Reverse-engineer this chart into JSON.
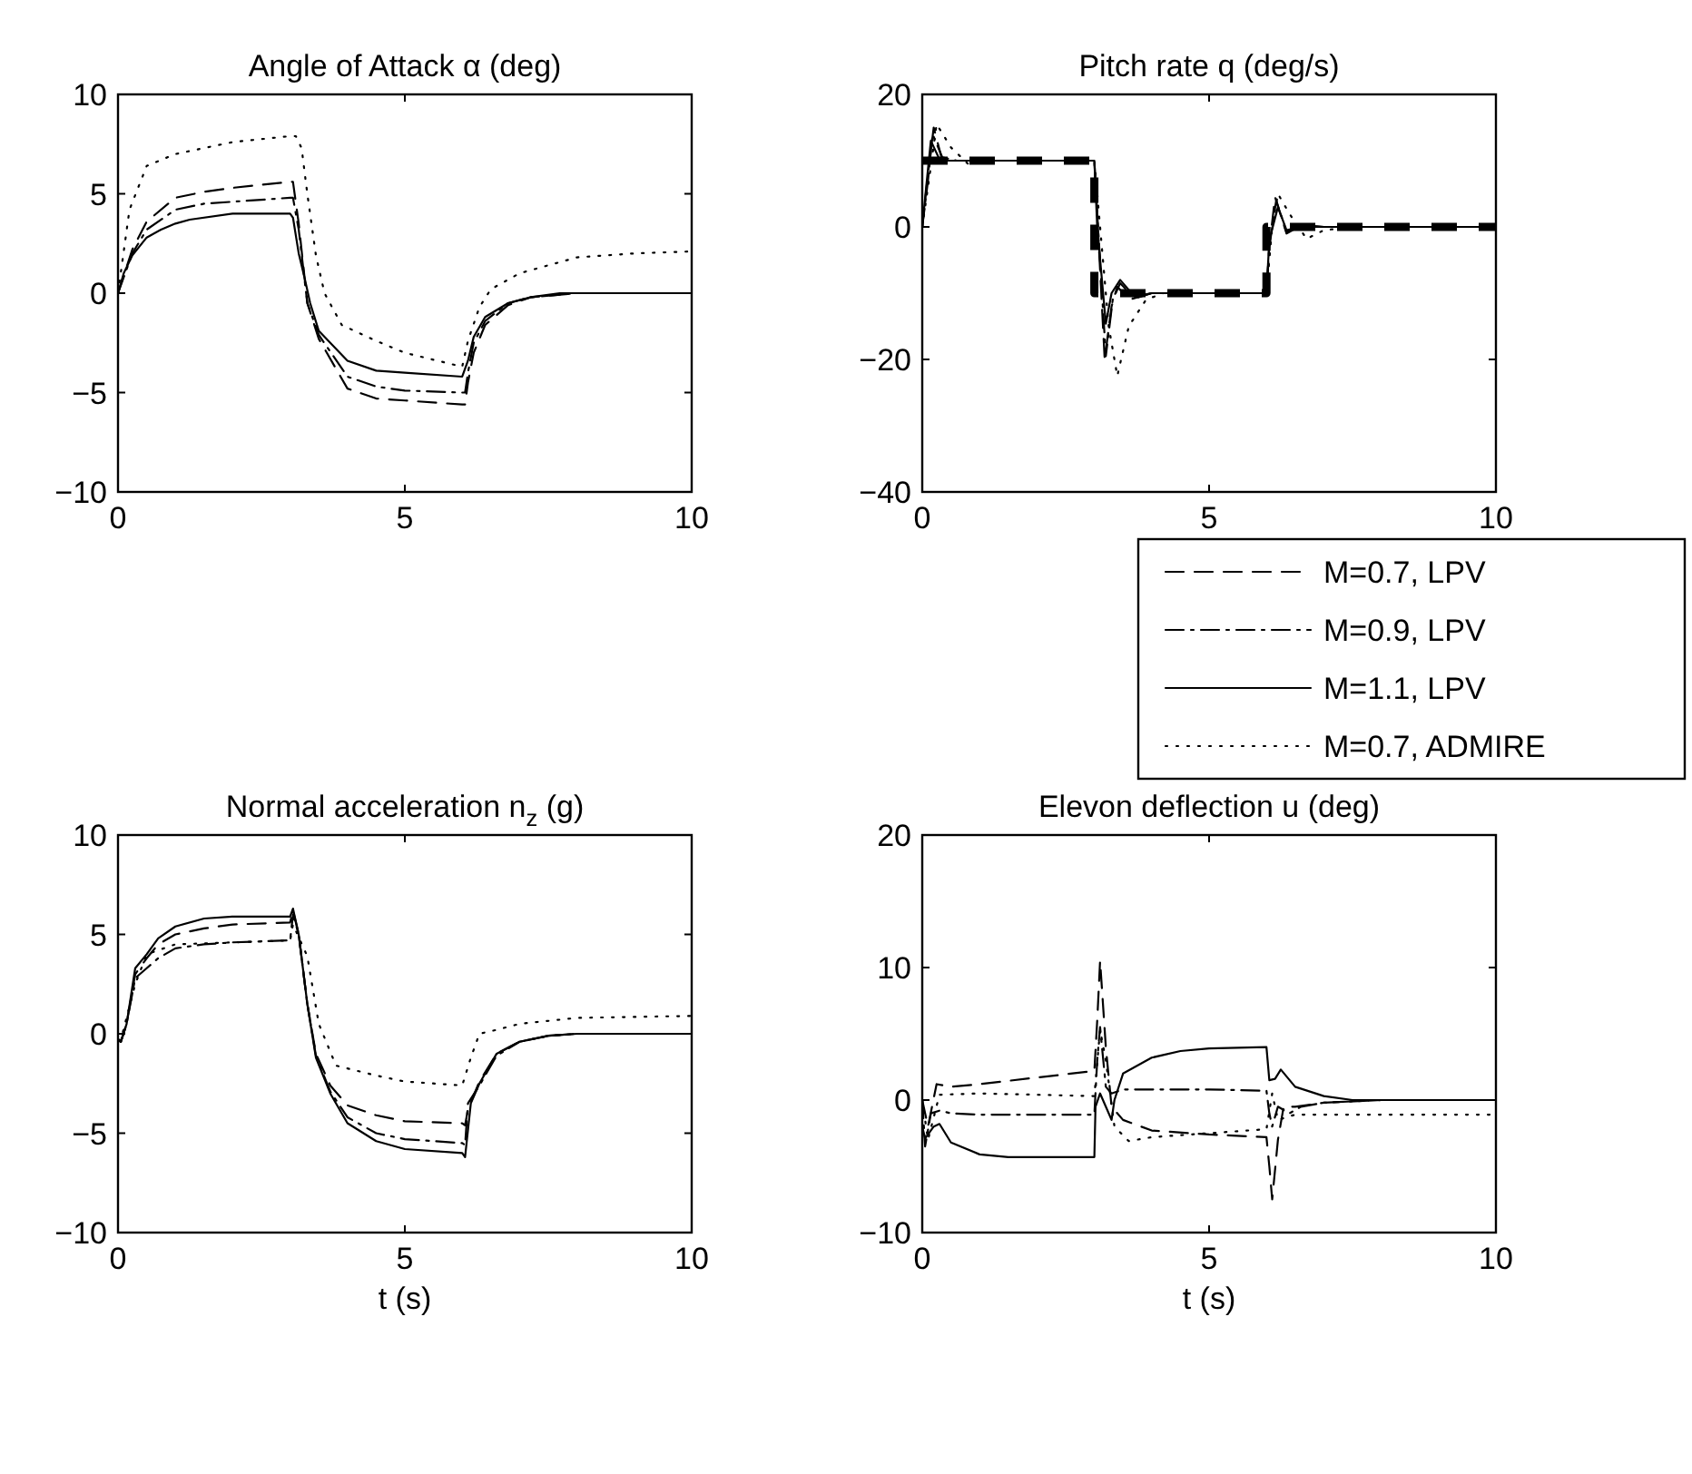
{
  "chart_data": [
    {
      "type": "line",
      "title": "Angle of Attack α (deg)",
      "xlim": [
        0,
        10
      ],
      "xticks": [
        0,
        5,
        10
      ],
      "ylim": [
        -10,
        10
      ],
      "yticks": [
        -10,
        -5,
        0,
        5,
        10
      ],
      "grid": false,
      "legend": false,
      "series": [
        {
          "color": "#000000",
          "line_style": "dashed",
          "x": [
            0,
            0.25,
            0.5,
            1,
            1.5,
            2,
            3,
            3.05,
            3.15,
            3.3,
            3.5,
            4,
            4.5,
            5,
            6,
            6.05,
            6.1,
            6.2,
            6.4,
            6.8,
            7.2,
            8,
            10
          ],
          "values": [
            0,
            2.2,
            3.6,
            4.8,
            5.1,
            5.3,
            5.6,
            5.6,
            3.5,
            -0.5,
            -2.3,
            -4.8,
            -5.3,
            -5.4,
            -5.6,
            -5.6,
            -4.5,
            -3.0,
            -1.6,
            -0.6,
            -0.2,
            0,
            0
          ]
        },
        {
          "color": "#000000",
          "line_style": "dashdot",
          "x": [
            0,
            0.25,
            0.5,
            1,
            1.5,
            2,
            3,
            3.05,
            3.15,
            3.3,
            3.5,
            4,
            4.5,
            5,
            6,
            6.05,
            6.1,
            6.2,
            6.4,
            6.8,
            7.2,
            8,
            10
          ],
          "values": [
            0,
            2.0,
            3.2,
            4.2,
            4.5,
            4.6,
            4.8,
            4.8,
            3.2,
            -0.5,
            -2.1,
            -4.2,
            -4.7,
            -4.9,
            -5.0,
            -5.0,
            -4.0,
            -2.5,
            -1.4,
            -0.5,
            -0.2,
            0,
            0
          ]
        },
        {
          "color": "#000000",
          "line_style": "solid",
          "x": [
            0,
            0.1,
            0.25,
            0.5,
            0.75,
            1,
            1.25,
            2,
            3,
            3.05,
            3.15,
            3.25,
            3.35,
            3.5,
            4,
            4.5,
            5,
            6,
            6.1,
            6.2,
            6.4,
            6.8,
            7.2,
            7.7,
            8.5,
            10
          ],
          "values": [
            0,
            1.0,
            1.9,
            2.8,
            3.2,
            3.5,
            3.7,
            4.0,
            4.0,
            3.8,
            2.0,
            0.8,
            -0.5,
            -1.9,
            -3.4,
            -3.9,
            -4.0,
            -4.2,
            -3.4,
            -2.2,
            -1.2,
            -0.5,
            -0.2,
            0,
            0,
            0
          ]
        },
        {
          "color": "#000000",
          "line_style": "dotted",
          "x": [
            0,
            0.2,
            0.5,
            1,
            1.5,
            2,
            3,
            3.1,
            3.2,
            3.3,
            3.45,
            3.6,
            3.9,
            4.5,
            5,
            6,
            6.1,
            6.3,
            6.5,
            7,
            7.5,
            8,
            9,
            10
          ],
          "values": [
            0,
            4.2,
            6.4,
            7.0,
            7.3,
            7.6,
            7.9,
            7.9,
            7.3,
            5.0,
            1.9,
            0,
            -1.6,
            -2.4,
            -3.0,
            -3.7,
            -2.4,
            -0.7,
            0.2,
            1.0,
            1.4,
            1.8,
            2.0,
            2.1
          ]
        }
      ]
    },
    {
      "type": "line",
      "title": "Pitch rate q (deg/s)",
      "xlim": [
        0,
        10
      ],
      "xticks": [
        0,
        5,
        10
      ],
      "ylim": [
        -40,
        20
      ],
      "yticks": [
        -40,
        -20,
        0,
        20
      ],
      "grid": false,
      "legend": "bottom right",
      "series": [
        {
          "type": "step",
          "color": "#000000",
          "line_style": "dashed",
          "x": [
            0,
            3,
            6,
            10
          ],
          "values": [
            10,
            -10,
            0,
            0
          ]
        },
        {
          "name": "M=0.7, LPV",
          "color": "#000000",
          "line_style": "dashed",
          "x": [
            0,
            0.1,
            0.2,
            0.35,
            0.6,
            3,
            3.05,
            3.18,
            3.3,
            3.4,
            3.6,
            4,
            6,
            6.05,
            6.15,
            6.35,
            6.6,
            7,
            10
          ],
          "values": [
            0,
            8,
            15,
            10,
            10,
            10,
            2,
            -20,
            -12,
            -9,
            -11,
            -10,
            -10,
            -3,
            4.5,
            -1,
            0.2,
            0,
            0
          ]
        },
        {
          "name": "M=0.9, LPV",
          "color": "#000000",
          "line_style": "dashdot",
          "x": [
            0,
            0.1,
            0.18,
            0.35,
            0.6,
            3,
            3.05,
            3.2,
            3.32,
            3.45,
            3.7,
            4,
            6,
            6.05,
            6.17,
            6.35,
            6.6,
            7,
            10
          ],
          "values": [
            0,
            7,
            14,
            10.5,
            10,
            10,
            2,
            -19.5,
            -11,
            -8.5,
            -10.8,
            -10,
            -10,
            -3,
            4,
            -0.8,
            0.3,
            0,
            0
          ]
        },
        {
          "name": "M=1.1, LPV",
          "color": "#000000",
          "line_style": "solid",
          "x": [
            0,
            0.08,
            0.15,
            0.3,
            0.4,
            3,
            3.05,
            3.2,
            3.3,
            3.45,
            3.7,
            4,
            6,
            6.05,
            6.2,
            6.35,
            6.6,
            7,
            10
          ],
          "values": [
            0,
            7,
            13,
            10.2,
            10,
            10,
            0,
            -14.6,
            -10,
            -8,
            -10.5,
            -10,
            -10,
            -2,
            3,
            -0.5,
            0,
            0,
            0
          ]
        },
        {
          "name": "M=0.7, ADMIRE",
          "color": "#000000",
          "line_style": "dotted",
          "x": [
            0,
            0.1,
            0.25,
            0.5,
            0.8,
            1,
            3,
            3.1,
            3.25,
            3.4,
            3.6,
            3.9,
            4.2,
            6,
            6.1,
            6.2,
            6.4,
            6.7,
            7,
            7.5,
            10
          ],
          "values": [
            0,
            6,
            15.5,
            12,
            9.5,
            10,
            10,
            0,
            -15,
            -22.5,
            -15,
            -11,
            -10,
            -10,
            0,
            5,
            2,
            -1.8,
            -0.5,
            0,
            0
          ]
        }
      ]
    },
    {
      "type": "line",
      "title": "Normal acceleration n$_{z}$ (g)",
      "xlabel": "t (s)",
      "xlim": [
        0,
        10
      ],
      "xticks": [
        0,
        5,
        10
      ],
      "ylim": [
        -10,
        10
      ],
      "yticks": [
        -10,
        -5,
        0,
        5,
        10
      ],
      "grid": false,
      "legend": false,
      "series": [
        {
          "color": "#000000",
          "line_style": "dashed",
          "x": [
            0,
            0.05,
            0.15,
            0.3,
            0.5,
            0.7,
            1,
            1.5,
            2,
            3,
            3.05,
            3.15,
            3.3,
            3.45,
            3.7,
            4,
            4.5,
            5,
            6,
            6.05,
            6.1,
            6.3,
            6.6,
            7,
            7.5,
            8,
            10
          ],
          "values": [
            -0.3,
            -0.4,
            0.5,
            3.0,
            3.8,
            4.5,
            5.0,
            5.3,
            5.5,
            5.6,
            6.2,
            5.0,
            1.5,
            -1.0,
            -2.6,
            -3.6,
            -4.1,
            -4.4,
            -4.5,
            -4.6,
            -3.8,
            -2.4,
            -1.0,
            -0.4,
            -0.1,
            0,
            0
          ]
        },
        {
          "color": "#000000",
          "line_style": "dashdot",
          "x": [
            0,
            0.05,
            0.15,
            0.3,
            0.5,
            0.7,
            1,
            1.5,
            2,
            3,
            3.05,
            3.15,
            3.3,
            3.45,
            3.7,
            4,
            4.5,
            5,
            6,
            6.05,
            6.1,
            6.3,
            6.6,
            7,
            7.5,
            8,
            10
          ],
          "values": [
            -0.3,
            -0.4,
            0.5,
            2.8,
            3.3,
            3.8,
            4.3,
            4.5,
            4.6,
            4.7,
            6.0,
            5.0,
            1.5,
            -1.1,
            -2.9,
            -4.2,
            -5.0,
            -5.3,
            -5.5,
            -5.6,
            -3.5,
            -2.6,
            -1.1,
            -0.4,
            -0.1,
            0,
            0
          ]
        },
        {
          "color": "#000000",
          "line_style": "solid",
          "x": [
            0,
            0.05,
            0.15,
            0.3,
            0.5,
            0.7,
            1,
            1.5,
            2,
            3,
            3.05,
            3.15,
            3.3,
            3.45,
            3.7,
            4,
            4.5,
            5,
            6,
            6.05,
            6.15,
            6.3,
            6.6,
            7,
            7.5,
            8,
            10
          ],
          "values": [
            -0.3,
            -0.4,
            0.5,
            3.3,
            4.0,
            4.8,
            5.4,
            5.8,
            5.9,
            5.9,
            6.3,
            5.0,
            1.5,
            -1.2,
            -3.0,
            -4.5,
            -5.4,
            -5.8,
            -6.0,
            -6.2,
            -3.5,
            -2.5,
            -1.0,
            -0.4,
            -0.1,
            0,
            0
          ]
        },
        {
          "color": "#000000",
          "line_style": "dotted",
          "x": [
            0,
            0.05,
            0.3,
            0.5,
            1,
            2,
            3,
            3.05,
            3.3,
            3.5,
            3.8,
            4.5,
            5,
            6,
            6.15,
            6.3,
            6.6,
            7,
            8,
            10
          ],
          "values": [
            -0.3,
            -0.3,
            2.5,
            4.0,
            4.5,
            4.6,
            4.7,
            5.5,
            3.9,
            0.5,
            -1.6,
            -2.1,
            -2.4,
            -2.6,
            -1.2,
            0,
            0.2,
            0.5,
            0.8,
            0.9
          ]
        }
      ]
    },
    {
      "type": "line",
      "title": "Elevon deflection u (deg)",
      "xlabel": "t (s)",
      "xlim": [
        0,
        10
      ],
      "xticks": [
        0,
        5,
        10
      ],
      "ylim": [
        -10,
        20
      ],
      "yticks": [
        -10,
        0,
        10,
        20
      ],
      "grid": false,
      "legend": false,
      "series": [
        {
          "color": "#000000",
          "line_style": "dashed",
          "x": [
            0,
            0.1,
            0.25,
            0.5,
            1,
            2,
            3,
            3.05,
            3.1,
            3.2,
            3.3,
            3.5,
            4,
            5,
            6,
            6.05,
            6.1,
            6.2,
            6.3,
            6.5,
            7,
            8,
            10
          ],
          "values": [
            0,
            -2,
            1.2,
            1.0,
            1.2,
            1.7,
            2.2,
            6,
            10.5,
            4,
            -0.5,
            -1.5,
            -2.3,
            -2.6,
            -2.8,
            -5,
            -7.5,
            -3,
            -0.5,
            -0.5,
            -0.2,
            0,
            0
          ]
        },
        {
          "color": "#000000",
          "line_style": "dashdot",
          "x": [
            0,
            0.05,
            0.15,
            0.3,
            0.5,
            1,
            2,
            3,
            3.05,
            3.1,
            3.2,
            3.3,
            3.5,
            4,
            5,
            6,
            6.05,
            6.1,
            6.2,
            6.4,
            6.6,
            7,
            8,
            10
          ],
          "values": [
            0,
            -3.5,
            -1,
            -0.8,
            -1.0,
            -1.1,
            -1.1,
            -1.1,
            3,
            5.5,
            1,
            0.5,
            0.8,
            0.8,
            0.8,
            0.7,
            -1,
            -2,
            -0.5,
            -1,
            -0.5,
            -0.2,
            0,
            0
          ]
        },
        {
          "color": "#000000",
          "line_style": "solid",
          "x": [
            0,
            0.05,
            0.2,
            0.3,
            0.5,
            1,
            1.5,
            3,
            3.02,
            3.1,
            3.2,
            3.3,
            3.35,
            3.5,
            4,
            4.5,
            5,
            6,
            6.05,
            6.15,
            6.25,
            6.5,
            7,
            7.5,
            10
          ],
          "values": [
            -2,
            -2.9,
            -2,
            -1.8,
            -3.2,
            -4.1,
            -4.3,
            -4.3,
            -0.5,
            0.5,
            -0.5,
            -1.5,
            0,
            2.0,
            3.2,
            3.7,
            3.9,
            4.0,
            1.5,
            1.6,
            2.3,
            1.0,
            0.3,
            0,
            0
          ]
        },
        {
          "color": "#000000",
          "line_style": "dotted",
          "x": [
            0,
            0.1,
            0.3,
            1,
            2,
            3,
            3.1,
            3.2,
            3.35,
            3.6,
            4,
            5,
            6,
            6.1,
            6.2,
            6.5,
            10
          ],
          "values": [
            0,
            -3,
            0.4,
            0.5,
            0.4,
            0.3,
            5.3,
            3,
            -2,
            -3.1,
            -2.8,
            -2.5,
            -2.2,
            0.5,
            -1.5,
            -1.1,
            -1.1
          ]
        }
      ]
    }
  ]
}
